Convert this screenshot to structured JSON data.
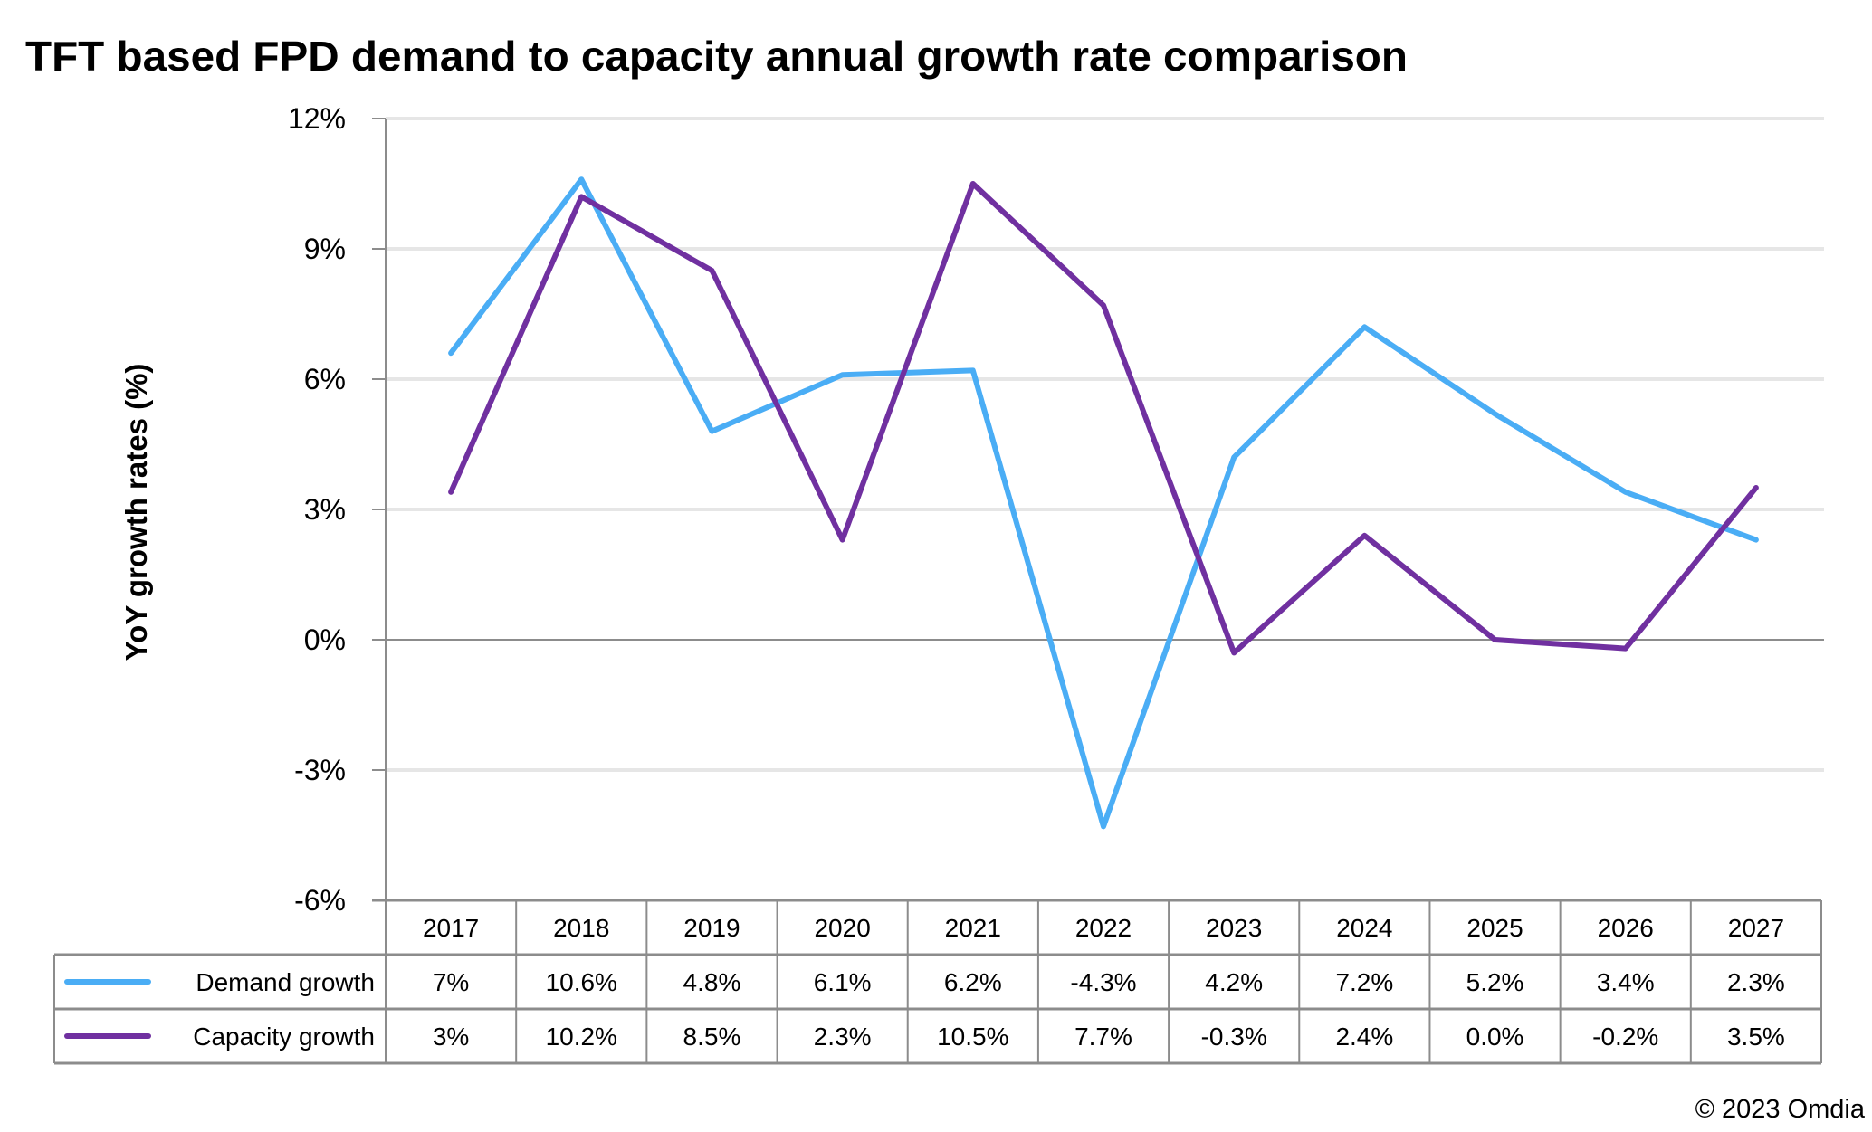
{
  "chart_data": {
    "type": "line",
    "title": "TFT based FPD demand to capacity annual growth rate comparison",
    "xlabel": "",
    "ylabel": "YoY growth rates (%)",
    "ylim": [
      -6,
      12
    ],
    "yticks": [
      12,
      9,
      6,
      3,
      0,
      -3,
      -6
    ],
    "ytick_labels": [
      "12%",
      "9%",
      "6%",
      "3%",
      "0%",
      "-3%",
      "-6%"
    ],
    "grid": true,
    "legend": "data-table-left",
    "categories": [
      "2017",
      "2018",
      "2019",
      "2020",
      "2021",
      "2022",
      "2023",
      "2024",
      "2025",
      "2026",
      "2027"
    ],
    "series": [
      {
        "name": "Demand growth",
        "color": "#4AADF5",
        "values": [
          6.6,
          10.6,
          4.8,
          6.1,
          6.2,
          -4.3,
          4.2,
          7.2,
          5.2,
          3.4,
          2.3
        ],
        "table_labels": [
          "7%",
          "10.6%",
          "4.8%",
          "6.1%",
          "6.2%",
          "-4.3%",
          "4.2%",
          "7.2%",
          "5.2%",
          "3.4%",
          "2.3%"
        ]
      },
      {
        "name": "Capacity growth",
        "color": "#7030A0",
        "values": [
          3.4,
          10.2,
          8.5,
          2.3,
          10.5,
          7.7,
          -0.3,
          2.4,
          0.0,
          -0.2,
          3.5
        ],
        "table_labels": [
          "3%",
          "10.2%",
          "8.5%",
          "2.3%",
          "10.5%",
          "7.7%",
          "-0.3%",
          "2.4%",
          "0.0%",
          "-0.2%",
          "3.5%"
        ]
      }
    ]
  },
  "footer": {
    "copyright": "© 2023 Omdia"
  }
}
